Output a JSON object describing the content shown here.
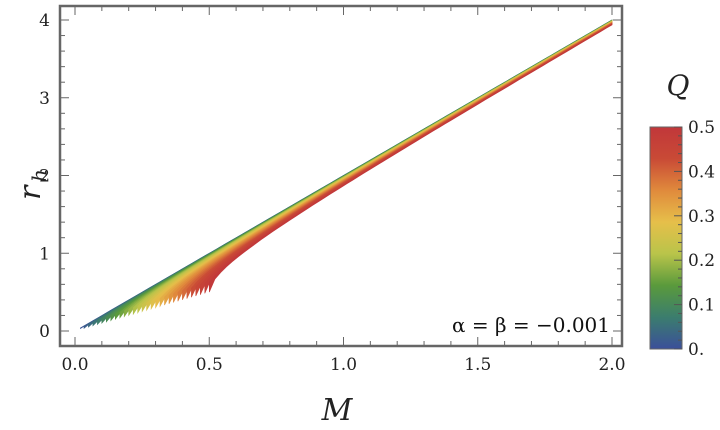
{
  "chart_data": {
    "type": "area",
    "xlabel": "M",
    "ylabel": "r",
    "ylabel_sub": "h",
    "xlim": [
      0,
      2
    ],
    "ylim": [
      0,
      4
    ],
    "x_ticks": [
      {
        "value": 0.0,
        "label": "0.0"
      },
      {
        "value": 0.5,
        "label": "0.5"
      },
      {
        "value": 1.0,
        "label": "1.0"
      },
      {
        "value": 1.5,
        "label": "1.5"
      },
      {
        "value": 2.0,
        "label": "2.0"
      }
    ],
    "y_ticks": [
      {
        "value": 0,
        "label": "0"
      },
      {
        "value": 1,
        "label": "1"
      },
      {
        "value": 2,
        "label": "2"
      },
      {
        "value": 3,
        "label": "3"
      },
      {
        "value": 4,
        "label": "4"
      }
    ],
    "colorbar": {
      "title": "Q",
      "range": [
        0,
        0.5
      ],
      "ticks": [
        {
          "value": 0.0,
          "label": "0."
        },
        {
          "value": 0.1,
          "label": "0.1"
        },
        {
          "value": 0.2,
          "label": "0.2"
        },
        {
          "value": 0.3,
          "label": "0.3"
        },
        {
          "value": 0.4,
          "label": "0.4"
        },
        {
          "value": 0.5,
          "label": "0.5"
        }
      ],
      "colors": [
        "#3b4f9a",
        "#3b7d6e",
        "#5a9a3c",
        "#b9c44a",
        "#e6bf4a",
        "#e08a3c",
        "#c94a36",
        "#c1373a"
      ]
    },
    "annotation": "α = β = −0.001",
    "grid": false
  }
}
